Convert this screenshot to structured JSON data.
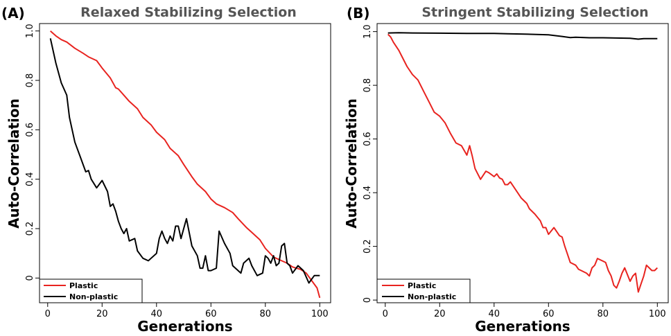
{
  "chart_data": [
    {
      "panel": "(A)",
      "type": "line",
      "title": "Relaxed Stabilizing Selection",
      "xlabel": "Generations",
      "ylabel": "Auto-Correlation",
      "xlim": [
        -3,
        104
      ],
      "ylim": [
        -0.1,
        1.03
      ],
      "xticks": [
        0,
        20,
        40,
        60,
        80,
        100
      ],
      "yticks": [
        0,
        0.2,
        0.4,
        0.6,
        0.8,
        1.0
      ],
      "ytick_labels": [
        "0",
        "0.2",
        "0.4",
        "0.6",
        "0.8",
        "1.0"
      ],
      "legend_position": "bottom-left",
      "series": [
        {
          "name": "Plastic",
          "color": "#e8231f",
          "x": [
            1,
            3,
            5,
            7,
            10,
            13,
            15,
            18,
            20,
            23,
            25,
            26,
            28,
            30,
            33,
            35,
            38,
            40,
            43,
            45,
            48,
            50,
            53,
            55,
            58,
            60,
            62,
            65,
            68,
            70,
            73,
            75,
            78,
            80,
            83,
            85,
            88,
            90,
            93,
            95,
            97,
            99,
            100
          ],
          "y": [
            1.0,
            0.98,
            0.965,
            0.955,
            0.93,
            0.91,
            0.895,
            0.88,
            0.85,
            0.81,
            0.77,
            0.765,
            0.74,
            0.715,
            0.685,
            0.65,
            0.62,
            0.59,
            0.56,
            0.525,
            0.495,
            0.46,
            0.41,
            0.38,
            0.35,
            0.32,
            0.3,
            0.285,
            0.265,
            0.24,
            0.205,
            0.185,
            0.155,
            0.12,
            0.085,
            0.075,
            0.06,
            0.045,
            0.035,
            0.02,
            -0.01,
            -0.04,
            -0.08
          ]
        },
        {
          "name": "Non-plastic",
          "color": "#000000",
          "x": [
            1,
            3,
            5,
            7,
            8,
            10,
            12,
            14,
            15,
            16,
            18,
            20,
            22,
            23,
            24,
            25,
            26,
            27,
            28,
            29,
            30,
            32,
            33,
            35,
            37,
            38,
            40,
            41,
            42,
            43,
            44,
            45,
            46,
            47,
            48,
            49,
            50,
            51,
            53,
            55,
            56,
            57,
            58,
            59,
            60,
            62,
            63,
            65,
            67,
            68,
            70,
            71,
            72,
            74,
            75,
            77,
            79,
            80,
            81,
            82,
            83,
            84,
            85,
            86,
            87,
            88,
            89,
            90,
            92,
            94,
            96,
            98,
            100
          ],
          "y": [
            0.97,
            0.87,
            0.79,
            0.74,
            0.65,
            0.55,
            0.49,
            0.43,
            0.435,
            0.4,
            0.365,
            0.395,
            0.35,
            0.29,
            0.3,
            0.27,
            0.23,
            0.2,
            0.18,
            0.2,
            0.15,
            0.16,
            0.11,
            0.08,
            0.07,
            0.08,
            0.1,
            0.16,
            0.19,
            0.16,
            0.14,
            0.17,
            0.15,
            0.21,
            0.21,
            0.16,
            0.2,
            0.24,
            0.13,
            0.09,
            0.04,
            0.04,
            0.09,
            0.03,
            0.03,
            0.04,
            0.19,
            0.14,
            0.1,
            0.05,
            0.03,
            0.02,
            0.06,
            0.08,
            0.05,
            0.01,
            0.02,
            0.09,
            0.08,
            0.06,
            0.09,
            0.05,
            0.06,
            0.13,
            0.14,
            0.06,
            0.05,
            0.02,
            0.05,
            0.03,
            -0.02,
            0.01,
            0.01
          ]
        }
      ]
    },
    {
      "panel": "(B)",
      "type": "line",
      "title": "Stringent Stabilizing Selection",
      "xlabel": "Generations",
      "ylabel": "Auto-Correlation",
      "xlim": [
        -3,
        104
      ],
      "ylim": [
        -0.01,
        1.03
      ],
      "xticks": [
        0,
        20,
        40,
        60,
        80,
        100
      ],
      "yticks": [
        0,
        0.2,
        0.4,
        0.6,
        0.8,
        1.0
      ],
      "ytick_labels": [
        "0",
        "0.2",
        "0.4",
        "0.6",
        "0.8",
        "1.0"
      ],
      "legend_position": "bottom-left",
      "series": [
        {
          "name": "Plastic",
          "color": "#e8231f",
          "x": [
            1,
            2,
            3,
            5,
            6,
            8,
            10,
            12,
            14,
            16,
            18,
            20,
            22,
            24,
            26,
            28,
            30,
            31,
            32,
            33,
            35,
            37,
            38,
            40,
            41,
            42,
            43,
            44,
            45,
            46,
            48,
            50,
            52,
            53,
            55,
            57,
            58,
            59,
            60,
            62,
            63,
            64,
            65,
            66,
            67,
            68,
            70,
            71,
            72,
            74,
            75,
            76,
            77,
            78,
            80,
            81,
            82,
            83,
            84,
            85,
            86,
            87,
            88,
            90,
            91,
            92,
            93,
            94,
            95,
            96,
            97,
            98,
            99,
            100
          ],
          "y": [
            0.99,
            0.98,
            0.96,
            0.93,
            0.91,
            0.87,
            0.84,
            0.82,
            0.78,
            0.74,
            0.7,
            0.685,
            0.66,
            0.62,
            0.585,
            0.575,
            0.54,
            0.575,
            0.535,
            0.49,
            0.45,
            0.48,
            0.475,
            0.46,
            0.47,
            0.455,
            0.45,
            0.43,
            0.43,
            0.44,
            0.41,
            0.38,
            0.36,
            0.34,
            0.32,
            0.295,
            0.27,
            0.27,
            0.245,
            0.27,
            0.255,
            0.24,
            0.235,
            0.2,
            0.17,
            0.14,
            0.13,
            0.115,
            0.11,
            0.1,
            0.09,
            0.12,
            0.13,
            0.155,
            0.145,
            0.14,
            0.11,
            0.09,
            0.055,
            0.045,
            0.07,
            0.1,
            0.12,
            0.07,
            0.09,
            0.1,
            0.03,
            0.06,
            0.09,
            0.13,
            0.12,
            0.11,
            0.11,
            0.12
          ]
        },
        {
          "name": "Non-plastic",
          "color": "#000000",
          "x": [
            1,
            5,
            10,
            20,
            30,
            40,
            45,
            50,
            60,
            65,
            68,
            70,
            75,
            80,
            85,
            90,
            93,
            95,
            100
          ],
          "y": [
            0.995,
            0.996,
            0.995,
            0.994,
            0.993,
            0.993,
            0.992,
            0.991,
            0.988,
            0.982,
            0.978,
            0.979,
            0.977,
            0.977,
            0.976,
            0.975,
            0.972,
            0.974,
            0.974
          ]
        }
      ]
    }
  ]
}
